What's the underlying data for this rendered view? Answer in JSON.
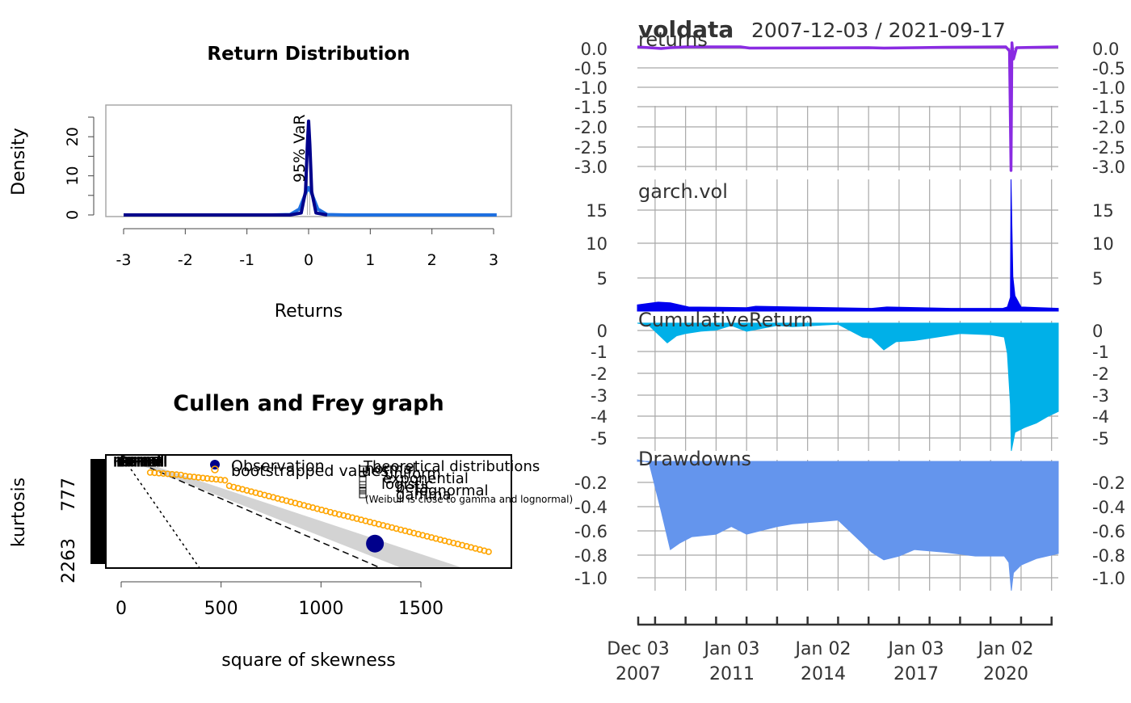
{
  "colors": {
    "returns": "#8a2be2",
    "garch": "#0000ee",
    "cumret": "#00b0e8",
    "drawdown": "#6495ed",
    "grid": "#a8a8a8",
    "density_light": "#1e6fe0",
    "density_dark": "#00008b",
    "boot": "#ffa500",
    "obs": "#00008b",
    "beta_area": "#d3d3d3"
  },
  "chart_data": [
    {
      "type": "line",
      "title": "Return Distribution",
      "xlabel": "Returns",
      "ylabel": "Density",
      "x_ticks": [
        "-3",
        "-2",
        "-1",
        "0",
        "1",
        "2",
        "3"
      ],
      "y_ticks": [
        "0",
        "10",
        "20"
      ],
      "xlim": [
        -3.1,
        3.1
      ],
      "ylim": [
        0,
        28
      ],
      "annotation": "95% VaR",
      "var_value": -0.05,
      "series": [
        {
          "x": [
            -3.0,
            -0.6,
            -0.3,
            -0.15,
            -0.05,
            0,
            0.05,
            0.15,
            0.3,
            0.6,
            3.05
          ],
          "y": [
            0,
            0,
            0.1,
            1.5,
            5.5,
            7.0,
            5.5,
            1.5,
            0.1,
            0,
            0
          ]
        },
        {
          "x": [
            -3.0,
            -0.3,
            -0.12,
            -0.05,
            -0.02,
            0,
            0.02,
            0.05,
            0.12,
            0.3
          ],
          "y": [
            0,
            0,
            0.5,
            6,
            18,
            24,
            18,
            6,
            0.5,
            0
          ]
        }
      ]
    },
    {
      "type": "scatter",
      "title": "Cullen and Frey graph",
      "xlabel": "square of skewness",
      "ylabel": "kurtosis",
      "x_ticks": [
        "0",
        "500",
        "1000",
        "1500"
      ],
      "y_ticks": [
        "777",
        "2263"
      ],
      "xlim": [
        -75,
        1960
      ],
      "observation": {
        "x": 1270,
        "y": 1450
      },
      "legend_left": [
        "Observation",
        "bootstrapped values"
      ],
      "legend_right_title": "Theoretical distributions",
      "legend_right_items": [
        "normal",
        "uniform",
        "exponential",
        "logistic",
        "beta",
        "lognormal",
        "gamma"
      ],
      "legend_note": "(Weibull is close to gamma and lognormal)"
    },
    {
      "type": "area",
      "title": "voldata",
      "date_range": "2007-12-03 / 2021-09-17",
      "x_ticks": [
        "Dec 03\n2007",
        "Jan 03\n2011",
        "Jan 02\n2014",
        "Jan 03\n2017",
        "Jan 02\n2020"
      ],
      "series": [
        {
          "name": "returns",
          "y_ticks": [
            "0.0",
            "-0.5",
            "-1.0",
            "-1.5",
            "-2.0",
            "-2.5",
            "-3.0"
          ],
          "ylim": [
            -3.05,
            0.08
          ],
          "x": [
            2007.92,
            2008.7,
            2009.0,
            2009.5,
            2011.3,
            2011.6,
            2015.5,
            2016.0,
            2018.0,
            2020.0,
            2020.12,
            2020.17,
            2020.2,
            2020.25,
            2020.35,
            2021.72
          ],
          "y": [
            0,
            -0.04,
            -0.02,
            0,
            0,
            -0.03,
            -0.02,
            -0.03,
            -0.01,
            0,
            -0.1,
            -3.05,
            0.1,
            -0.3,
            -0.02,
            0
          ]
        },
        {
          "name": "garch.vol",
          "y_ticks": [
            "15",
            "10",
            "5"
          ],
          "ylim": [
            0,
            19
          ],
          "x": [
            2007.92,
            2008.6,
            2009.0,
            2009.6,
            2011.5,
            2011.8,
            2015.6,
            2016.1,
            2018.2,
            2019.9,
            2020.05,
            2020.15,
            2020.17,
            2020.2,
            2020.23,
            2020.3,
            2020.5,
            2021.72
          ],
          "y": [
            0.9,
            1.3,
            1.2,
            0.6,
            0.5,
            0.7,
            0.4,
            0.6,
            0.4,
            0.4,
            0.6,
            2.0,
            19,
            12,
            5,
            2.2,
            0.6,
            0.4
          ]
        },
        {
          "name": "CumulativeReturn",
          "y_ticks": [
            "0",
            "-1",
            "-2",
            "-3",
            "-4",
            "-5"
          ],
          "ylim": [
            -5.5,
            0.1
          ],
          "x": [
            2007.92,
            2008.3,
            2008.9,
            2009.2,
            2009.5,
            2010.0,
            2010.5,
            2011.0,
            2011.5,
            2012.5,
            2013.0,
            2014.5,
            2015.3,
            2015.6,
            2016.0,
            2016.4,
            2017.0,
            2018.5,
            2019.5,
            2019.95,
            2020.05,
            2020.15,
            2020.18,
            2020.3,
            2020.6,
            2021.0,
            2021.4,
            2021.72
          ],
          "y": [
            0,
            -0.1,
            -0.85,
            -0.55,
            -0.45,
            -0.35,
            -0.3,
            -0.1,
            -0.35,
            -0.1,
            -0.15,
            -0.05,
            -0.6,
            -0.65,
            -1.15,
            -0.8,
            -0.75,
            -0.45,
            -0.5,
            -0.6,
            -1.3,
            -3.5,
            -5.5,
            -4.7,
            -4.5,
            -4.3,
            -4.0,
            -3.8
          ]
        },
        {
          "name": "Drawdowns",
          "y_ticks": [
            "-0.2",
            "-0.4",
            "-0.6",
            "-0.8",
            "-1.0"
          ],
          "ylim": [
            -1.12,
            -0.1
          ],
          "x": [
            2007.92,
            2008.3,
            2008.7,
            2009.0,
            2009.3,
            2009.7,
            2010.5,
            2011.0,
            2011.5,
            2012.5,
            2013.0,
            2014.5,
            2015.3,
            2015.6,
            2016.0,
            2016.5,
            2017.0,
            2018.0,
            2019.0,
            2019.95,
            2020.1,
            2020.18,
            2020.25,
            2020.5,
            2021.0,
            2021.72
          ],
          "y": [
            -0.1,
            -0.12,
            -0.5,
            -0.8,
            -0.75,
            -0.7,
            -0.68,
            -0.62,
            -0.68,
            -0.62,
            -0.6,
            -0.57,
            -0.75,
            -0.82,
            -0.88,
            -0.85,
            -0.8,
            -0.82,
            -0.85,
            -0.85,
            -0.9,
            -1.12,
            -0.98,
            -0.92,
            -0.87,
            -0.83
          ]
        }
      ]
    }
  ]
}
